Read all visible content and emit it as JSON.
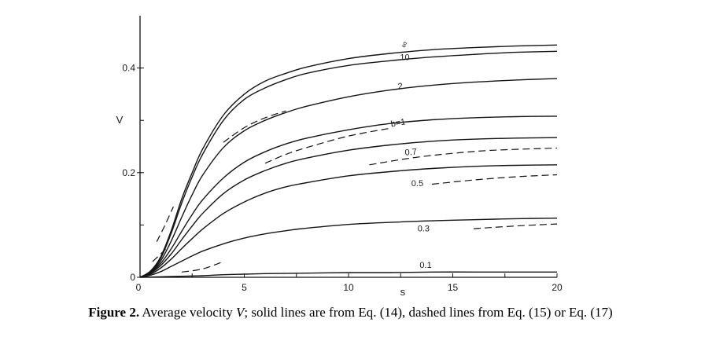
{
  "chart_data": {
    "type": "line",
    "xlabel": "s",
    "ylabel": "V",
    "xlim": [
      0,
      20
    ],
    "ylim": [
      0,
      0.5
    ],
    "x_ticks": [
      0,
      5,
      10,
      15,
      20
    ],
    "x_tick_labels": [
      "0",
      "5",
      "10",
      "15",
      "20"
    ],
    "y_ticks": [
      0,
      0.2,
      0.4
    ],
    "y_tick_labels": [
      "0",
      "0.2",
      "0.4"
    ],
    "grid": false,
    "series": [
      {
        "name": "∞",
        "style": "solid",
        "x": [
          0,
          0.5,
          1,
          1.5,
          2,
          2.5,
          3,
          4,
          5,
          6,
          7,
          8,
          10,
          12,
          14,
          16,
          18,
          20
        ],
        "y": [
          0,
          0.012,
          0.04,
          0.09,
          0.15,
          0.2,
          0.245,
          0.31,
          0.35,
          0.375,
          0.39,
          0.402,
          0.418,
          0.428,
          0.435,
          0.439,
          0.442,
          0.444
        ]
      },
      {
        "name": "10",
        "style": "solid",
        "x": [
          0,
          0.5,
          1,
          1.5,
          2,
          2.5,
          3,
          4,
          5,
          6,
          7,
          8,
          10,
          12,
          14,
          16,
          18,
          20
        ],
        "y": [
          0,
          0.011,
          0.037,
          0.085,
          0.142,
          0.192,
          0.235,
          0.3,
          0.34,
          0.362,
          0.378,
          0.39,
          0.405,
          0.414,
          0.421,
          0.426,
          0.43,
          0.432
        ]
      },
      {
        "name": "2",
        "style": "solid",
        "x": [
          0,
          0.5,
          1,
          1.5,
          2,
          2.5,
          3,
          4,
          5,
          6,
          7,
          8,
          10,
          12,
          14,
          16,
          18,
          20
        ],
        "y": [
          0,
          0.01,
          0.032,
          0.07,
          0.115,
          0.158,
          0.195,
          0.248,
          0.28,
          0.3,
          0.315,
          0.327,
          0.345,
          0.358,
          0.367,
          0.373,
          0.377,
          0.38
        ]
      },
      {
        "name": "b=1",
        "style": "solid",
        "x": [
          0,
          0.5,
          1,
          1.5,
          2,
          2.5,
          3,
          4,
          5,
          6,
          7,
          8,
          10,
          12,
          14,
          16,
          18,
          20
        ],
        "y": [
          0,
          0.009,
          0.027,
          0.055,
          0.088,
          0.12,
          0.148,
          0.19,
          0.22,
          0.24,
          0.255,
          0.266,
          0.282,
          0.294,
          0.301,
          0.305,
          0.307,
          0.308
        ]
      },
      {
        "name": "0.7",
        "style": "solid",
        "x": [
          0,
          0.5,
          1,
          1.5,
          2,
          2.5,
          3,
          4,
          5,
          6,
          7,
          8,
          10,
          12,
          14,
          16,
          18,
          20
        ],
        "y": [
          0,
          0.008,
          0.023,
          0.045,
          0.072,
          0.098,
          0.122,
          0.16,
          0.186,
          0.204,
          0.218,
          0.228,
          0.243,
          0.253,
          0.26,
          0.264,
          0.266,
          0.267
        ]
      },
      {
        "name": "0.5",
        "style": "solid",
        "x": [
          0,
          0.5,
          1,
          1.5,
          2,
          2.5,
          3,
          4,
          5,
          6,
          7,
          8,
          10,
          12,
          14,
          16,
          18,
          20
        ],
        "y": [
          0,
          0.006,
          0.018,
          0.035,
          0.055,
          0.074,
          0.092,
          0.122,
          0.144,
          0.161,
          0.173,
          0.181,
          0.194,
          0.202,
          0.208,
          0.212,
          0.214,
          0.215
        ]
      },
      {
        "name": "0.3",
        "style": "solid",
        "x": [
          0,
          0.5,
          1,
          1.5,
          2,
          2.5,
          3,
          4,
          5,
          6,
          7,
          8,
          10,
          12,
          14,
          16,
          18,
          20
        ],
        "y": [
          0,
          0.004,
          0.011,
          0.021,
          0.031,
          0.041,
          0.05,
          0.064,
          0.075,
          0.083,
          0.089,
          0.094,
          0.101,
          0.105,
          0.108,
          0.11,
          0.112,
          0.113
        ]
      },
      {
        "name": "0.1",
        "style": "solid",
        "x": [
          0,
          1,
          2,
          3,
          4,
          5,
          6,
          8,
          10,
          12,
          14,
          16,
          18,
          20
        ],
        "y": [
          0,
          0.001,
          0.002,
          0.003,
          0.005,
          0.006,
          0.007,
          0.008,
          0.009,
          0.009,
          0.01,
          0.01,
          0.01,
          0.01
        ]
      },
      {
        "style": "dashed",
        "x": [
          0.8,
          1.2,
          1.6
        ],
        "y": [
          0.068,
          0.1,
          0.135
        ]
      },
      {
        "style": "dashed",
        "x": [
          0.6,
          1.0,
          1.4
        ],
        "y": [
          0.03,
          0.045,
          0.06
        ]
      },
      {
        "style": "dashed",
        "x": [
          4,
          5,
          6,
          7
        ],
        "y": [
          0.258,
          0.286,
          0.305,
          0.318
        ]
      },
      {
        "style": "dashed",
        "x": [
          6,
          7,
          8,
          10,
          12
        ],
        "y": [
          0.218,
          0.235,
          0.248,
          0.27,
          0.285
        ]
      },
      {
        "style": "dashed",
        "x": [
          11,
          13,
          15,
          17,
          20
        ],
        "y": [
          0.215,
          0.228,
          0.237,
          0.243,
          0.247
        ]
      },
      {
        "style": "dashed",
        "x": [
          14,
          16,
          18,
          20
        ],
        "y": [
          0.178,
          0.186,
          0.192,
          0.196
        ]
      },
      {
        "style": "dashed",
        "x": [
          16,
          18,
          20
        ],
        "y": [
          0.093,
          0.098,
          0.102
        ]
      },
      {
        "style": "dashed",
        "x": [
          2,
          3,
          4
        ],
        "y": [
          0.01,
          0.016,
          0.03
        ]
      }
    ],
    "annotations": [
      "∞",
      "10",
      "2",
      "b=1",
      "0.7",
      "0.5",
      "0.3",
      "0.1"
    ]
  },
  "caption": {
    "label": "Figure   2.",
    "pre": " Average velocity ",
    "var": "V",
    "post": "; solid lines are from Eq. (14), dashed lines from Eq. (15) or Eq. (17)"
  }
}
